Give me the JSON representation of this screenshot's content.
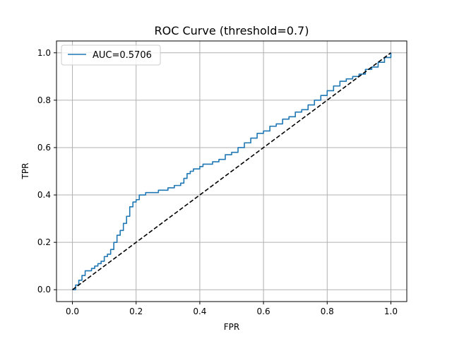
{
  "chart_data": {
    "type": "line",
    "title": "ROC Curve (threshold=0.7)",
    "xlabel": "FPR",
    "ylabel": "TPR",
    "xlim": [
      -0.05,
      1.05
    ],
    "ylim": [
      -0.05,
      1.05
    ],
    "x_ticks": [
      0.0,
      0.2,
      0.4,
      0.6,
      0.8,
      1.0
    ],
    "y_ticks": [
      0.0,
      0.2,
      0.4,
      0.6,
      0.8,
      1.0
    ],
    "x_tick_labels": [
      "0.0",
      "0.2",
      "0.4",
      "0.6",
      "0.8",
      "1.0"
    ],
    "y_tick_labels": [
      "0.0",
      "0.2",
      "0.4",
      "0.6",
      "0.8",
      "1.0"
    ],
    "grid": true,
    "legend_position": "top-left",
    "series": [
      {
        "name": "AUC=0.5706",
        "color": "#1f77b4",
        "style": "solid",
        "x": [
          0.0,
          0.01,
          0.02,
          0.03,
          0.04,
          0.06,
          0.07,
          0.08,
          0.09,
          0.1,
          0.11,
          0.12,
          0.13,
          0.14,
          0.15,
          0.16,
          0.17,
          0.18,
          0.19,
          0.2,
          0.21,
          0.22,
          0.23,
          0.25,
          0.27,
          0.28,
          0.3,
          0.32,
          0.34,
          0.35,
          0.36,
          0.37,
          0.38,
          0.4,
          0.41,
          0.42,
          0.44,
          0.46,
          0.48,
          0.5,
          0.52,
          0.54,
          0.56,
          0.58,
          0.6,
          0.62,
          0.64,
          0.66,
          0.68,
          0.7,
          0.72,
          0.74,
          0.76,
          0.78,
          0.8,
          0.82,
          0.84,
          0.86,
          0.88,
          0.9,
          0.92,
          0.94,
          0.96,
          0.98,
          1.0
        ],
        "y": [
          0.0,
          0.02,
          0.04,
          0.06,
          0.08,
          0.09,
          0.1,
          0.11,
          0.12,
          0.14,
          0.15,
          0.17,
          0.2,
          0.23,
          0.25,
          0.28,
          0.31,
          0.35,
          0.37,
          0.38,
          0.4,
          0.4,
          0.41,
          0.41,
          0.42,
          0.42,
          0.43,
          0.44,
          0.45,
          0.47,
          0.49,
          0.5,
          0.51,
          0.52,
          0.53,
          0.53,
          0.54,
          0.55,
          0.57,
          0.58,
          0.6,
          0.62,
          0.64,
          0.66,
          0.67,
          0.69,
          0.7,
          0.72,
          0.73,
          0.75,
          0.76,
          0.78,
          0.8,
          0.82,
          0.84,
          0.86,
          0.88,
          0.89,
          0.9,
          0.91,
          0.93,
          0.94,
          0.96,
          0.98,
          1.0
        ]
      },
      {
        "name": "",
        "color": "#000000",
        "style": "dashed",
        "x": [
          0.0,
          1.0
        ],
        "y": [
          0.0,
          1.0
        ]
      }
    ]
  }
}
